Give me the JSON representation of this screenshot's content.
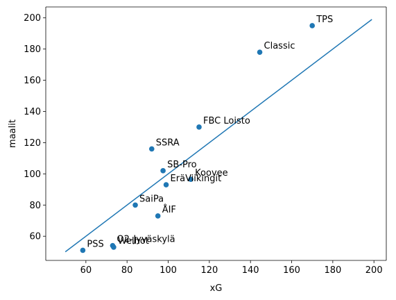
{
  "colors": {
    "point": "#1f77b4",
    "line": "#1f77b4",
    "axis": "#000000",
    "background": "#ffffff"
  },
  "chart_data": {
    "type": "scatter",
    "title": "",
    "xlabel": "xG",
    "ylabel": "maalit",
    "xlim": [
      40.5,
      206
    ],
    "ylim": [
      44.5,
      207
    ],
    "xticks": [
      60,
      80,
      100,
      120,
      140,
      160,
      180,
      200
    ],
    "yticks": [
      60,
      80,
      100,
      120,
      140,
      160,
      180,
      200
    ],
    "grid": false,
    "legend": "none",
    "points": [
      {
        "label": "TPS",
        "x": 170,
        "y": 195
      },
      {
        "label": "Classic",
        "x": 144.5,
        "y": 178
      },
      {
        "label": "FBC Loisto",
        "x": 115,
        "y": 130
      },
      {
        "label": "SSRA",
        "x": 92,
        "y": 116
      },
      {
        "label": "SB-Pro",
        "x": 97.5,
        "y": 102
      },
      {
        "label": "Koovee",
        "x": 111,
        "y": 96.5
      },
      {
        "label": "EräViikingit",
        "x": 99,
        "y": 93
      },
      {
        "label": "SaiPa",
        "x": 84,
        "y": 80
      },
      {
        "label": "ÅIF",
        "x": 95,
        "y": 73
      },
      {
        "label": "O2-Jyväskylä",
        "x": 73,
        "y": 54
      },
      {
        "label": "Welhot",
        "x": 73.5,
        "y": 53
      },
      {
        "label": "PSS",
        "x": 58.5,
        "y": 51
      }
    ],
    "reference_line": {
      "x": [
        50,
        199
      ],
      "y": [
        50,
        199
      ]
    }
  }
}
